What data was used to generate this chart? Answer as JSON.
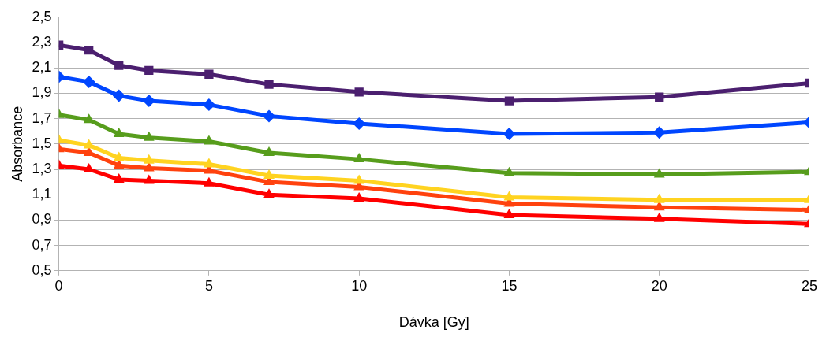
{
  "chart_data": {
    "type": "line",
    "xlabel": "Dávka [Gy]",
    "ylabel": "Absorbance",
    "x": [
      0,
      1,
      2,
      3,
      5,
      7,
      10,
      15,
      20,
      25
    ],
    "xlim": [
      0,
      25
    ],
    "xticks": [
      0,
      5,
      10,
      15,
      20,
      25
    ],
    "ylim": [
      0.5,
      2.5
    ],
    "yticks": [
      {
        "value": 0.5,
        "label": "0,5"
      },
      {
        "value": 0.7,
        "label": "0,7"
      },
      {
        "value": 0.9,
        "label": "0,9"
      },
      {
        "value": 1.1,
        "label": "1,1"
      },
      {
        "value": 1.3,
        "label": "1,3"
      },
      {
        "value": 1.5,
        "label": "1,5"
      },
      {
        "value": 1.7,
        "label": "1,7"
      },
      {
        "value": 1.9,
        "label": "1,9"
      },
      {
        "value": 2.1,
        "label": "2,1"
      },
      {
        "value": 2.3,
        "label": "2,3"
      },
      {
        "value": 2.5,
        "label": "2,5"
      }
    ],
    "grid": "y",
    "legend": false,
    "line_style": "solid",
    "series": [
      {
        "color": "#4b1f6f",
        "marker": "square",
        "values": [
          2.28,
          2.24,
          2.12,
          2.08,
          2.05,
          1.97,
          1.91,
          1.84,
          1.87,
          1.98
        ]
      },
      {
        "color": "#0046ff",
        "marker": "diamond",
        "values": [
          2.03,
          1.99,
          1.88,
          1.84,
          1.81,
          1.72,
          1.66,
          1.58,
          1.59,
          1.67
        ]
      },
      {
        "color": "#579d1c",
        "marker": "triangle",
        "values": [
          1.73,
          1.69,
          1.58,
          1.55,
          1.52,
          1.43,
          1.38,
          1.27,
          1.26,
          1.28
        ]
      },
      {
        "color": "#ffd320",
        "marker": "triangle",
        "values": [
          1.53,
          1.49,
          1.39,
          1.37,
          1.34,
          1.25,
          1.21,
          1.08,
          1.06,
          1.06
        ]
      },
      {
        "color": "#ff420e",
        "marker": "triangle",
        "values": [
          1.46,
          1.43,
          1.33,
          1.31,
          1.29,
          1.2,
          1.16,
          1.03,
          1.0,
          0.98
        ]
      },
      {
        "color": "#ff0000",
        "marker": "triangle",
        "values": [
          1.33,
          1.3,
          1.22,
          1.21,
          1.19,
          1.1,
          1.07,
          0.94,
          0.91,
          0.87
        ]
      }
    ]
  }
}
